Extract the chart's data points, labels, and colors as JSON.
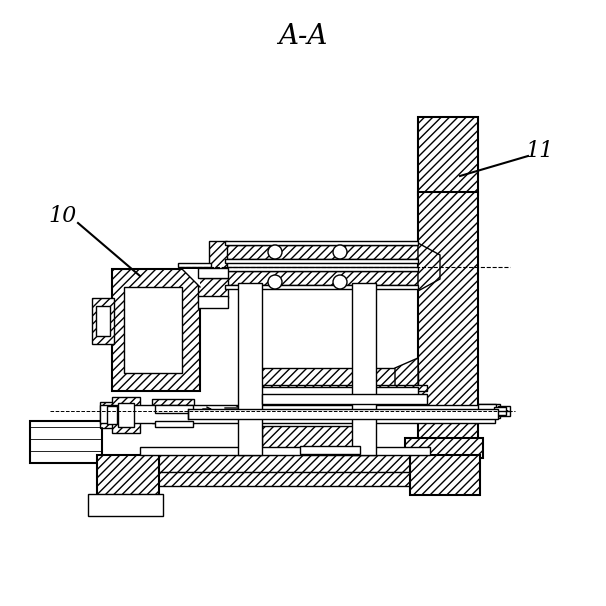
{
  "title": "A-A",
  "label_10": "10",
  "label_11": "11",
  "background": "#ffffff",
  "line_color": "#000000",
  "title_fontsize": 20,
  "label_fontsize": 16
}
